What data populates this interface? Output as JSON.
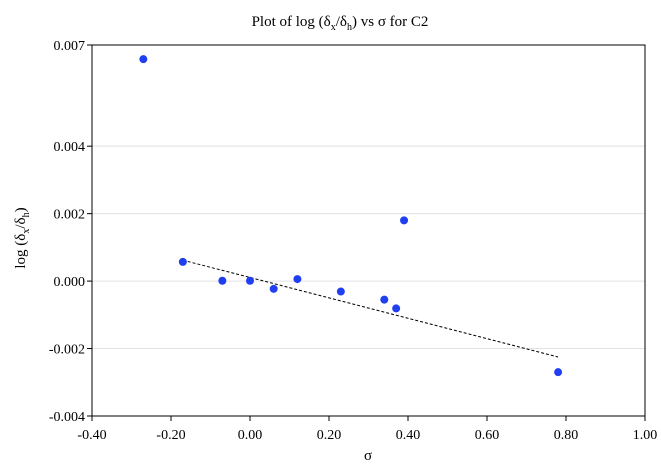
{
  "chart_data": {
    "type": "scatter",
    "title": {
      "prefix": "Plot of log (δ",
      "sub1": "x",
      "mid": "/δ",
      "sub2": "h",
      "suffix": ") vs σ for C2"
    },
    "xlabel": "σ",
    "ylabel": {
      "prefix": "log (δ",
      "sub1": "x",
      "mid": "/δ",
      "sub2": "h",
      "suffix": ")"
    },
    "xlim": [
      -0.4,
      1.0
    ],
    "ylim": [
      -0.004,
      0.007
    ],
    "x_ticks": [
      -0.4,
      -0.2,
      0.0,
      0.2,
      0.4,
      0.6,
      0.8,
      1.0
    ],
    "x_tick_labels": [
      "-0.40",
      "-0.20",
      "0.00",
      "0.20",
      "0.40",
      "0.60",
      "0.80",
      "1.00"
    ],
    "y_ticks": [
      -0.004,
      -0.002,
      0.0,
      0.002,
      0.004,
      0.007
    ],
    "y_tick_labels": [
      "-0.004",
      "-0.002",
      "0.000",
      "0.002",
      "0.004",
      "0.007"
    ],
    "grid": "horizontal",
    "point_color": "#1f3ff0",
    "trendline_color": "#000000",
    "points": [
      {
        "x": -0.27,
        "y": 0.00658
      },
      {
        "x": -0.17,
        "y": 0.00057
      },
      {
        "x": -0.07,
        "y": 1e-05
      },
      {
        "x": 0.0,
        "y": 1e-05
      },
      {
        "x": 0.06,
        "y": -0.00023
      },
      {
        "x": 0.12,
        "y": 6e-05
      },
      {
        "x": 0.23,
        "y": -0.00031
      },
      {
        "x": 0.34,
        "y": -0.00055
      },
      {
        "x": 0.37,
        "y": -0.00081
      },
      {
        "x": 0.39,
        "y": 0.0018
      },
      {
        "x": 0.78,
        "y": -0.0027
      }
    ],
    "trendline": {
      "style": "dashed",
      "x": [
        -0.17,
        0.78
      ],
      "y": [
        0.00062,
        -0.00225
      ]
    }
  }
}
